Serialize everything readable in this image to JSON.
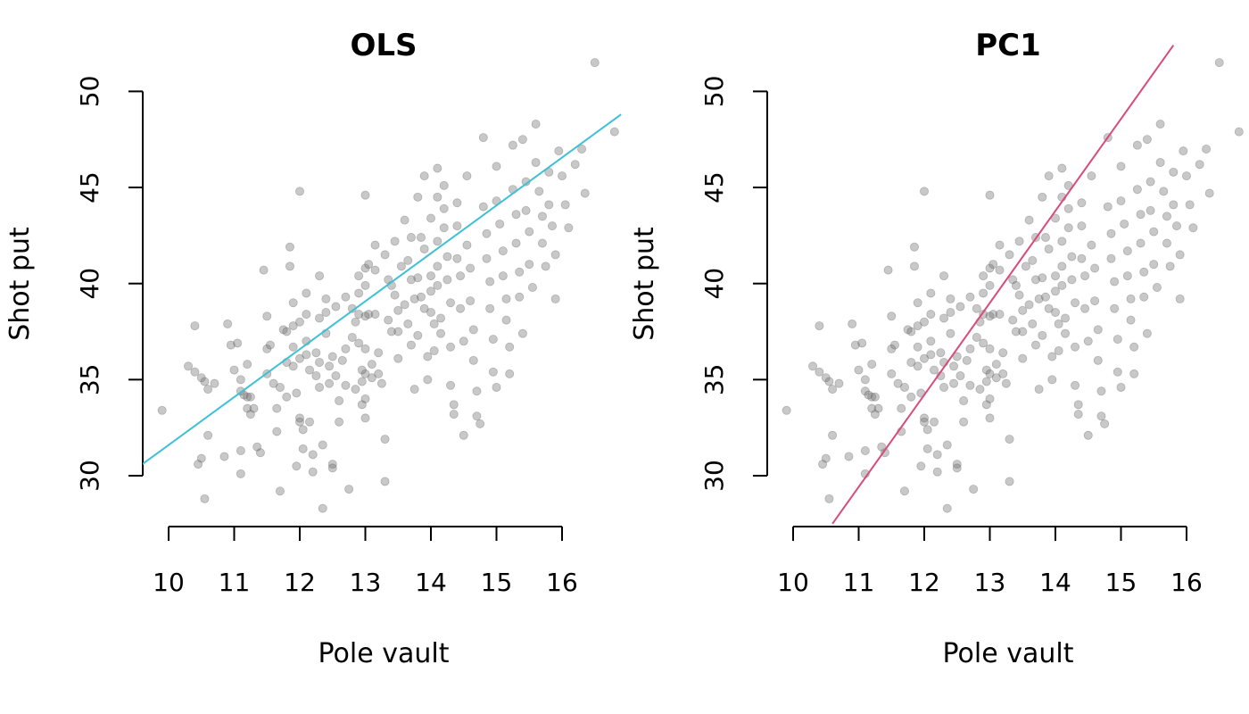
{
  "chart_data": [
    {
      "type": "scatter",
      "title": "OLS",
      "xlabel": "Pole vault",
      "ylabel": "Shot put",
      "xlim": [
        9.6,
        16.9
      ],
      "ylim": [
        27.5,
        52.5
      ],
      "xticks": [
        10,
        11,
        12,
        13,
        14,
        15,
        16
      ],
      "yticks": [
        30,
        35,
        40,
        45,
        50
      ],
      "grid": false,
      "point_color": "rgba(110,110,110,0.38)",
      "fit_line": {
        "x": [
          9.6,
          16.9
        ],
        "y": [
          30.6,
          48.8
        ],
        "color": "#3EC1D6"
      }
    },
    {
      "type": "scatter",
      "title": "PC1",
      "xlabel": "Pole vault",
      "ylabel": "Shot put",
      "xlim": [
        9.6,
        16.9
      ],
      "ylim": [
        27.5,
        52.5
      ],
      "xticks": [
        10,
        11,
        12,
        13,
        14,
        15,
        16
      ],
      "yticks": [
        30,
        35,
        40,
        45,
        50
      ],
      "grid": false,
      "point_color": "rgba(110,110,110,0.38)",
      "fit_line": {
        "x": [
          10.6,
          15.8
        ],
        "y": [
          27.5,
          52.4
        ],
        "color": "#D94A7D"
      }
    }
  ],
  "points": [
    [
      9.9,
      33.4
    ],
    [
      10.3,
      35.7
    ],
    [
      10.4,
      35.4
    ],
    [
      10.4,
      37.8
    ],
    [
      10.5,
      30.9
    ],
    [
      10.45,
      30.6
    ],
    [
      10.5,
      35.1
    ],
    [
      10.55,
      34.9
    ],
    [
      10.6,
      34.5
    ],
    [
      10.6,
      32.1
    ],
    [
      10.55,
      28.8
    ],
    [
      10.7,
      34.8
    ],
    [
      10.85,
      31.0
    ],
    [
      10.9,
      37.9
    ],
    [
      10.95,
      36.8
    ],
    [
      11.0,
      35.5
    ],
    [
      11.05,
      36.9
    ],
    [
      11.1,
      34.4
    ],
    [
      11.1,
      35.0
    ],
    [
      11.1,
      31.3
    ],
    [
      11.1,
      30.1
    ],
    [
      11.15,
      34.2
    ],
    [
      11.2,
      35.8
    ],
    [
      11.2,
      33.5
    ],
    [
      11.2,
      34.1
    ],
    [
      11.25,
      34.1
    ],
    [
      11.25,
      33.2
    ],
    [
      11.3,
      33.5
    ],
    [
      11.35,
      31.5
    ],
    [
      11.4,
      31.2
    ],
    [
      11.45,
      40.7
    ],
    [
      11.5,
      38.3
    ],
    [
      11.5,
      36.6
    ],
    [
      11.5,
      35.3
    ],
    [
      11.55,
      36.8
    ],
    [
      11.6,
      34.8
    ],
    [
      11.65,
      33.5
    ],
    [
      11.65,
      32.3
    ],
    [
      11.7,
      29.2
    ],
    [
      11.7,
      34.6
    ],
    [
      11.75,
      37.6
    ],
    [
      11.8,
      37.5
    ],
    [
      11.8,
      35.9
    ],
    [
      11.8,
      34.1
    ],
    [
      11.85,
      41.9
    ],
    [
      11.85,
      40.9
    ],
    [
      11.9,
      39.0
    ],
    [
      11.9,
      37.8
    ],
    [
      11.9,
      36.7
    ],
    [
      11.9,
      35.7
    ],
    [
      11.95,
      34.3
    ],
    [
      11.95,
      30.5
    ],
    [
      12.0,
      44.8
    ],
    [
      12.0,
      38.0
    ],
    [
      12.0,
      36.1
    ],
    [
      12.0,
      33.0
    ],
    [
      12.0,
      32.8
    ],
    [
      12.05,
      32.4
    ],
    [
      12.05,
      31.4
    ],
    [
      12.1,
      39.5
    ],
    [
      12.1,
      38.4
    ],
    [
      12.1,
      37.0
    ],
    [
      12.1,
      36.3
    ],
    [
      12.15,
      35.5
    ],
    [
      12.15,
      32.8
    ],
    [
      12.2,
      31.1
    ],
    [
      12.2,
      30.2
    ],
    [
      12.25,
      36.4
    ],
    [
      12.25,
      35.2
    ],
    [
      12.3,
      40.4
    ],
    [
      12.3,
      38.2
    ],
    [
      12.3,
      35.9
    ],
    [
      12.3,
      34.6
    ],
    [
      12.35,
      31.6
    ],
    [
      12.35,
      28.3
    ],
    [
      12.4,
      39.2
    ],
    [
      12.4,
      38.5
    ],
    [
      12.4,
      37.4
    ],
    [
      12.45,
      35.7
    ],
    [
      12.45,
      34.8
    ],
    [
      12.5,
      30.6
    ],
    [
      12.5,
      30.4
    ],
    [
      12.5,
      36.2
    ],
    [
      12.55,
      38.8
    ],
    [
      12.55,
      35.2
    ],
    [
      12.6,
      33.9
    ],
    [
      12.6,
      32.8
    ],
    [
      12.65,
      36.0
    ],
    [
      12.7,
      39.3
    ],
    [
      12.7,
      36.6
    ],
    [
      12.7,
      34.7
    ],
    [
      12.75,
      29.3
    ],
    [
      12.8,
      38.7
    ],
    [
      12.8,
      37.2
    ],
    [
      12.85,
      38.0
    ],
    [
      12.85,
      34.5
    ],
    [
      12.9,
      40.4
    ],
    [
      12.9,
      39.5
    ],
    [
      12.9,
      38.4
    ],
    [
      12.9,
      36.9
    ],
    [
      12.95,
      35.5
    ],
    [
      12.95,
      34.9
    ],
    [
      12.95,
      33.7
    ],
    [
      13.0,
      44.6
    ],
    [
      13.0,
      40.8
    ],
    [
      13.0,
      39.9
    ],
    [
      13.0,
      38.3
    ],
    [
      13.0,
      36.6
    ],
    [
      13.0,
      35.3
    ],
    [
      13.0,
      34.0
    ],
    [
      13.0,
      33.0
    ],
    [
      13.05,
      41.0
    ],
    [
      13.05,
      38.4
    ],
    [
      13.1,
      35.8
    ],
    [
      13.1,
      35.1
    ],
    [
      13.15,
      42.0
    ],
    [
      13.15,
      40.7
    ],
    [
      13.15,
      38.4
    ],
    [
      13.2,
      36.4
    ],
    [
      13.2,
      35.3
    ],
    [
      13.25,
      34.8
    ],
    [
      13.3,
      31.9
    ],
    [
      13.3,
      29.7
    ],
    [
      13.3,
      41.5
    ],
    [
      13.35,
      40.2
    ],
    [
      13.35,
      38.1
    ],
    [
      13.4,
      37.5
    ],
    [
      13.4,
      39.9
    ],
    [
      13.45,
      42.2
    ],
    [
      13.45,
      39.4
    ],
    [
      13.5,
      37.5
    ],
    [
      13.5,
      36.1
    ],
    [
      13.5,
      38.6
    ],
    [
      13.55,
      40.9
    ],
    [
      13.6,
      43.3
    ],
    [
      13.6,
      38.9
    ],
    [
      13.65,
      37.9
    ],
    [
      13.65,
      41.2
    ],
    [
      13.7,
      42.4
    ],
    [
      13.7,
      40.2
    ],
    [
      13.7,
      36.8
    ],
    [
      13.75,
      39.2
    ],
    [
      13.75,
      34.5
    ],
    [
      13.8,
      44.5
    ],
    [
      13.8,
      40.3
    ],
    [
      13.8,
      37.3
    ],
    [
      13.85,
      42.4
    ],
    [
      13.85,
      39.3
    ],
    [
      13.9,
      45.6
    ],
    [
      13.9,
      41.8
    ],
    [
      13.9,
      38.7
    ],
    [
      13.95,
      36.2
    ],
    [
      13.95,
      35.0
    ],
    [
      14.0,
      43.4
    ],
    [
      14.0,
      40.4
    ],
    [
      14.0,
      39.6
    ],
    [
      14.0,
      38.5
    ],
    [
      14.05,
      37.9
    ],
    [
      14.05,
      36.5
    ],
    [
      14.1,
      46.0
    ],
    [
      14.1,
      44.5
    ],
    [
      14.1,
      42.2
    ],
    [
      14.1,
      40.9
    ],
    [
      14.1,
      39.9
    ],
    [
      14.15,
      38.2
    ],
    [
      14.15,
      37.4
    ],
    [
      14.2,
      45.1
    ],
    [
      14.2,
      43.9
    ],
    [
      14.2,
      42.9
    ],
    [
      14.25,
      41.4
    ],
    [
      14.25,
      40.2
    ],
    [
      14.3,
      39.0
    ],
    [
      14.3,
      36.7
    ],
    [
      14.3,
      34.7
    ],
    [
      14.35,
      33.7
    ],
    [
      14.35,
      33.2
    ],
    [
      14.4,
      44.2
    ],
    [
      14.4,
      43.0
    ],
    [
      14.4,
      41.3
    ],
    [
      14.45,
      40.4
    ],
    [
      14.45,
      38.7
    ],
    [
      14.5,
      37.0
    ],
    [
      14.5,
      32.1
    ],
    [
      14.55,
      45.6
    ],
    [
      14.55,
      42.0
    ],
    [
      14.6,
      40.8
    ],
    [
      14.6,
      39.1
    ],
    [
      14.65,
      37.6
    ],
    [
      14.65,
      36.0
    ],
    [
      14.7,
      34.4
    ],
    [
      14.7,
      33.1
    ],
    [
      14.75,
      32.7
    ],
    [
      14.8,
      47.6
    ],
    [
      14.8,
      44.0
    ],
    [
      14.85,
      42.6
    ],
    [
      14.85,
      41.3
    ],
    [
      14.9,
      40.1
    ],
    [
      14.9,
      38.7
    ],
    [
      14.95,
      37.1
    ],
    [
      14.95,
      35.4
    ],
    [
      15.0,
      34.6
    ],
    [
      15.0,
      46.1
    ],
    [
      15.0,
      44.3
    ],
    [
      15.05,
      43.1
    ],
    [
      15.1,
      41.7
    ],
    [
      15.1,
      40.4
    ],
    [
      15.15,
      39.2
    ],
    [
      15.15,
      38.1
    ],
    [
      15.2,
      36.7
    ],
    [
      15.2,
      35.3
    ],
    [
      15.25,
      47.2
    ],
    [
      15.25,
      44.9
    ],
    [
      15.3,
      43.6
    ],
    [
      15.3,
      42.1
    ],
    [
      15.35,
      40.6
    ],
    [
      15.35,
      39.3
    ],
    [
      15.4,
      37.4
    ],
    [
      15.4,
      47.5
    ],
    [
      15.45,
      45.3
    ],
    [
      15.45,
      43.8
    ],
    [
      15.5,
      42.7
    ],
    [
      15.5,
      41.0
    ],
    [
      15.55,
      39.8
    ],
    [
      15.6,
      48.3
    ],
    [
      15.6,
      46.3
    ],
    [
      15.65,
      44.8
    ],
    [
      15.7,
      43.5
    ],
    [
      15.7,
      42.1
    ],
    [
      15.75,
      40.9
    ],
    [
      15.8,
      45.8
    ],
    [
      15.8,
      44.1
    ],
    [
      15.85,
      43.0
    ],
    [
      15.9,
      41.5
    ],
    [
      15.9,
      39.2
    ],
    [
      15.95,
      46.9
    ],
    [
      16.0,
      45.6
    ],
    [
      16.05,
      44.1
    ],
    [
      16.1,
      42.9
    ],
    [
      16.2,
      46.2
    ],
    [
      16.3,
      47.0
    ],
    [
      16.35,
      44.7
    ],
    [
      16.5,
      51.5
    ],
    [
      16.8,
      47.9
    ]
  ]
}
